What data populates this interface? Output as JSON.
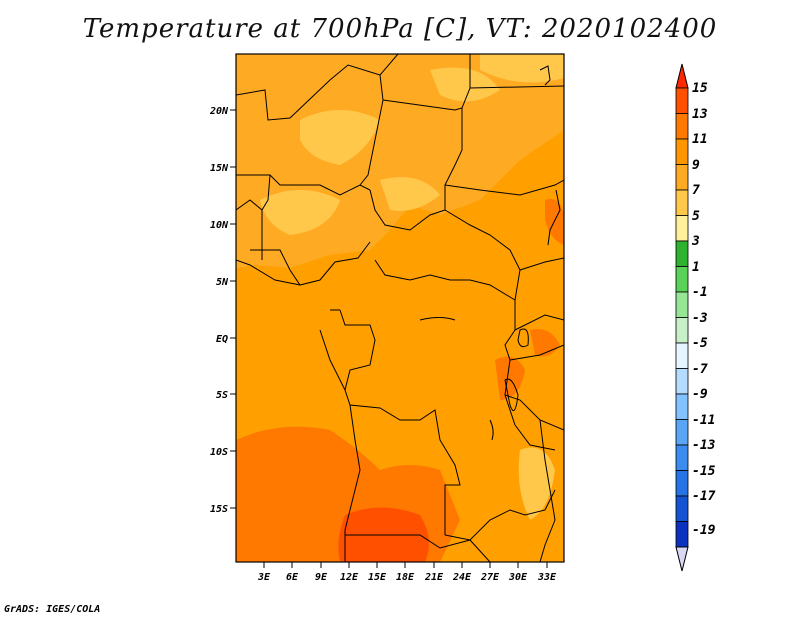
{
  "title": "Temperature at 700hPa [C], VT: 2020102400",
  "credit": "GrADS: IGES/COLA",
  "map": {
    "lat_labels": [
      "20N",
      "15N",
      "10N",
      "5N",
      "EQ",
      "5S",
      "10S",
      "15S"
    ],
    "lon_labels": [
      "3E",
      "6E",
      "9E",
      "12E",
      "15E",
      "18E",
      "21E",
      "24E",
      "27E",
      "30E",
      "33E"
    ]
  },
  "colorbar": {
    "labels": [
      "15",
      "13",
      "11",
      "9",
      "7",
      "5",
      "3",
      "1",
      "-1",
      "-3",
      "-5",
      "-7",
      "-9",
      "-11",
      "-13",
      "-15",
      "-17",
      "-19"
    ],
    "colors": [
      "#ff2800",
      "#ff5000",
      "#ff7800",
      "#ff9600",
      "#ffaa23",
      "#ffc84b",
      "#fff09b",
      "#2fb22f",
      "#5ad25a",
      "#96e696",
      "#c8f0c8",
      "#e6f5ff",
      "#b4dcff",
      "#82c3ff",
      "#5aa5f5",
      "#3c8cf0",
      "#2673e6",
      "#1454d2",
      "#0a32be",
      "#000078"
    ],
    "top_arrow_color": "#ff2800",
    "bottom_arrow_color": "#d8d8f5"
  }
}
